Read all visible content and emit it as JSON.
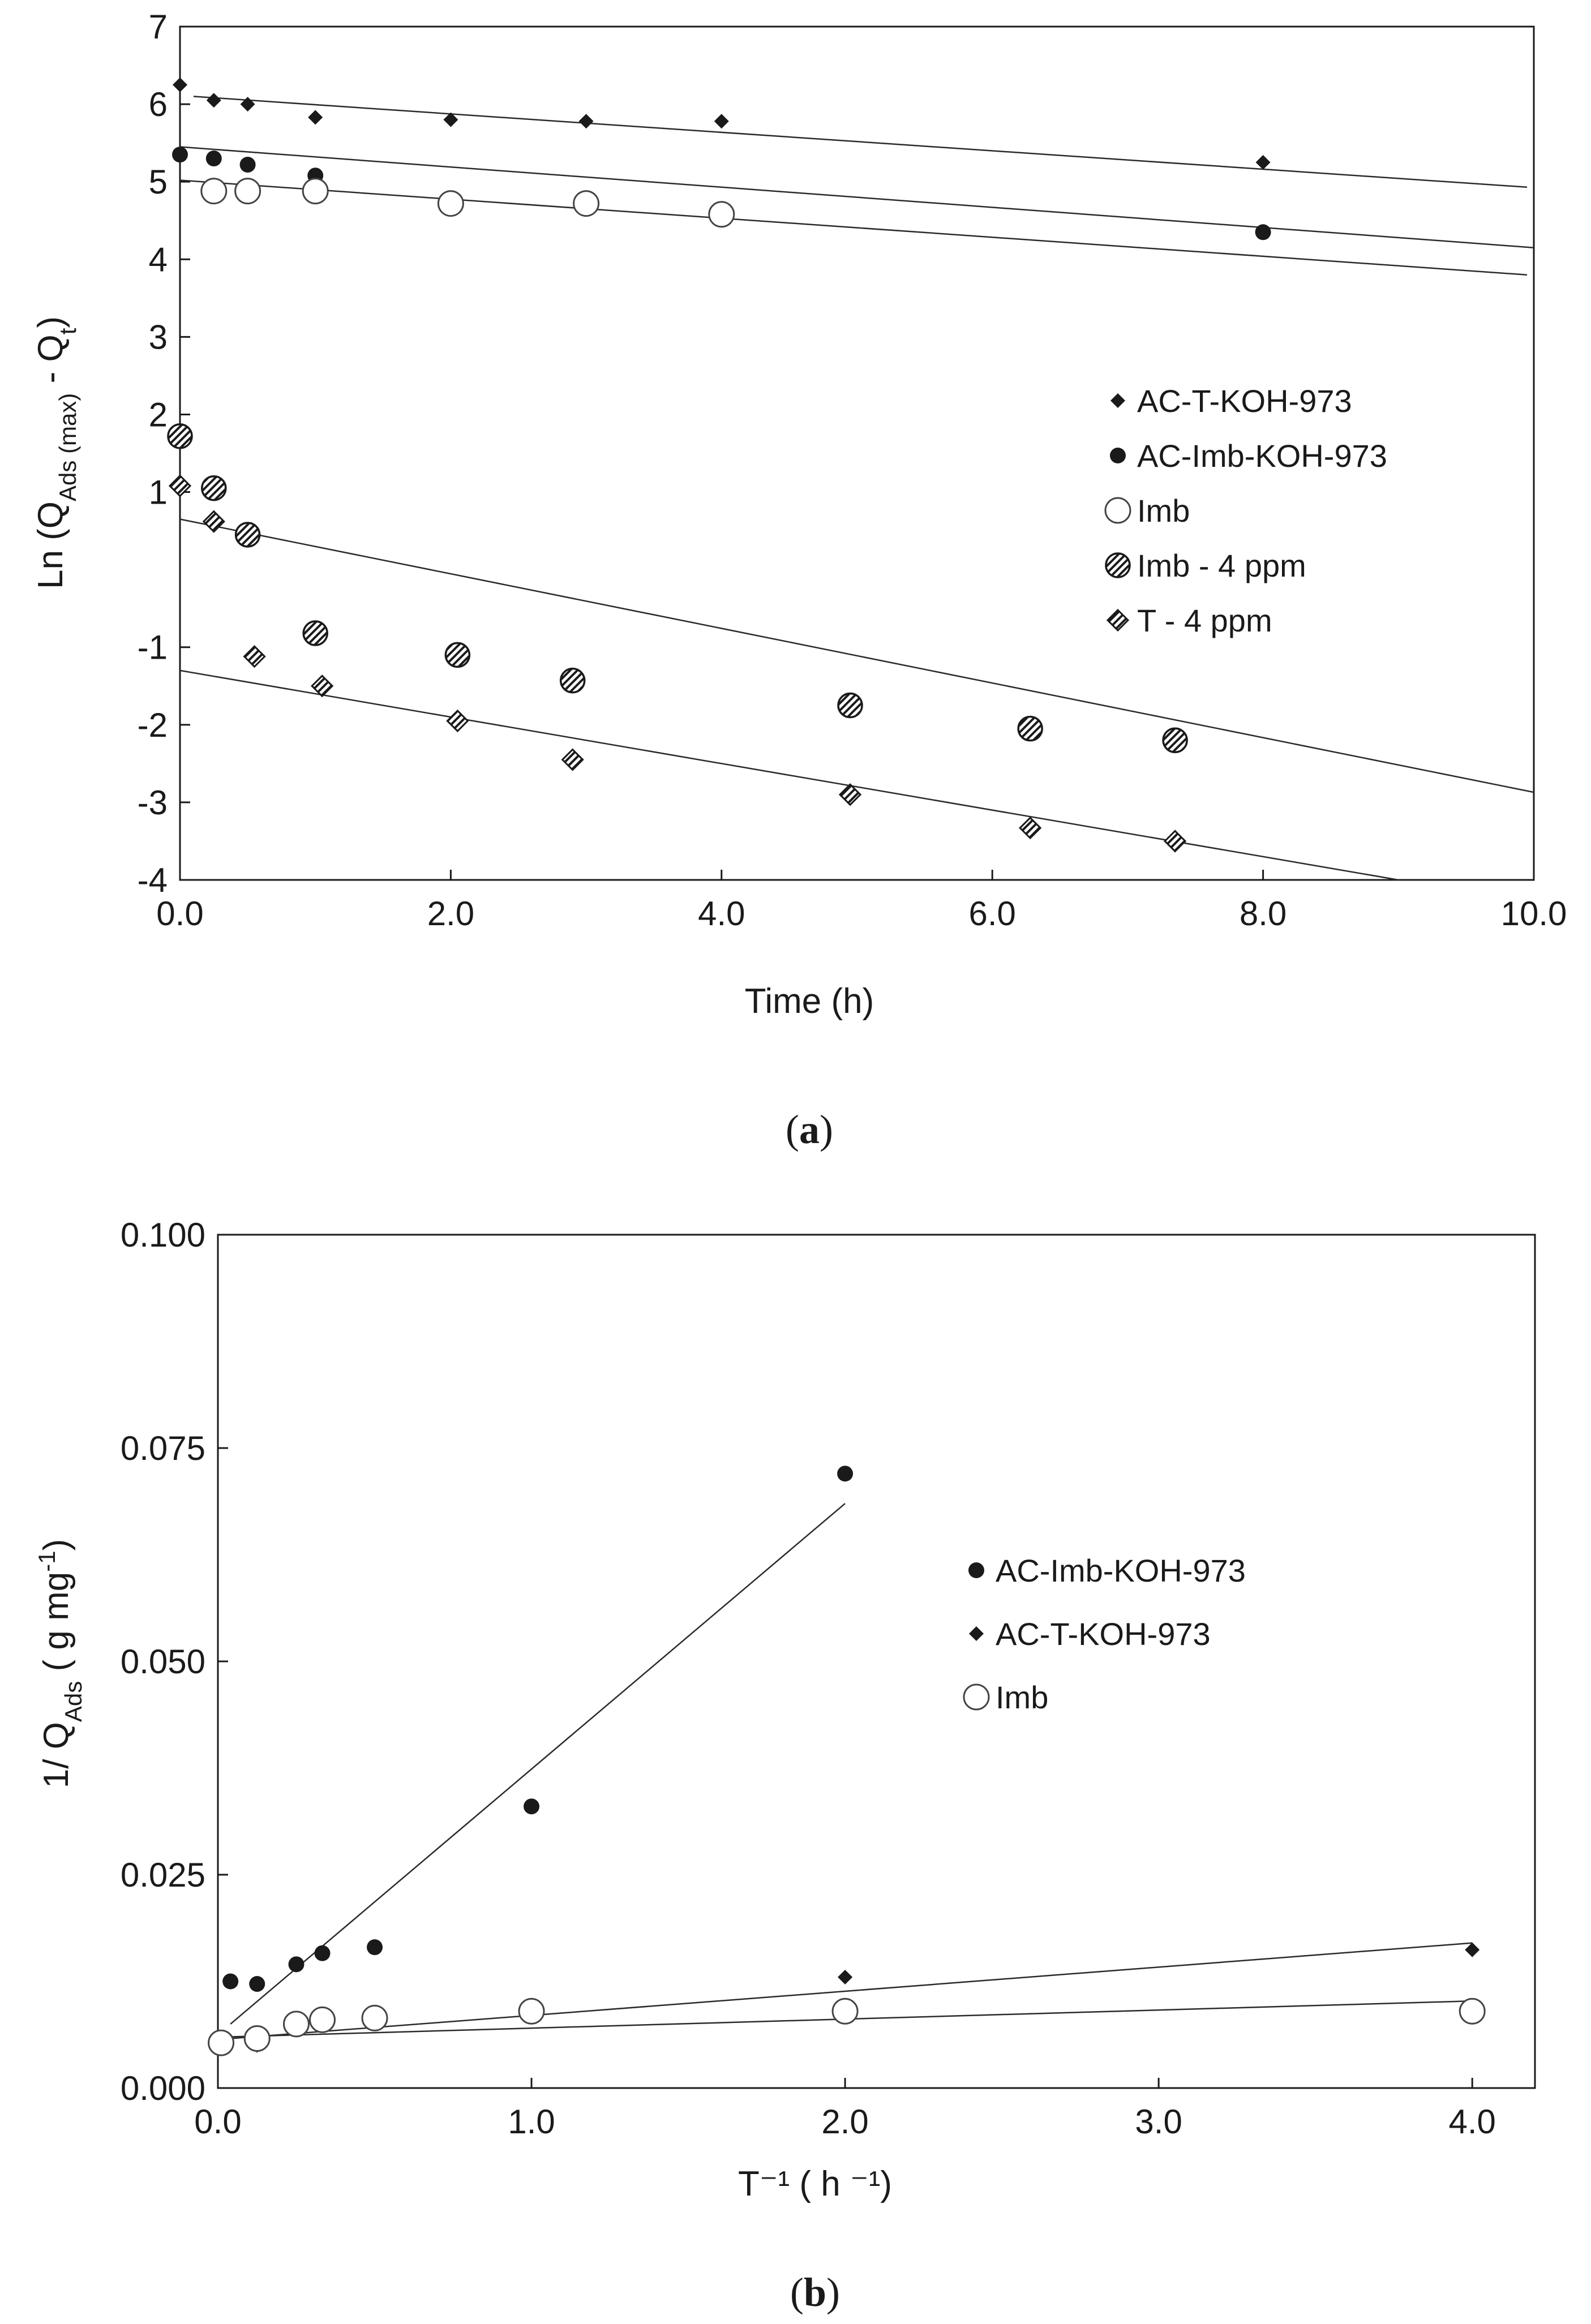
{
  "chart_data": [
    {
      "type": "scatter",
      "panel_label": "a",
      "xlabel": "Time (h)",
      "ylabel": {
        "prefix": "Ln (Q",
        "sub1": "Ads (max)",
        "middle": " - Q",
        "sub2": "t",
        "suffix": ")"
      },
      "xlim": [
        0,
        10
      ],
      "ylim": [
        -4,
        7
      ],
      "x_ticks": [
        0,
        2,
        4,
        6,
        8,
        10
      ],
      "x_tick_labels": [
        "0.0",
        "2.0",
        "4.0",
        "6.0",
        "8.0",
        "10.0"
      ],
      "y_ticks": [
        -4,
        -3,
        -2,
        -1,
        1,
        2,
        3,
        4,
        5,
        6,
        7
      ],
      "y_tick_labels": [
        "-4",
        "-3",
        "-2",
        "-1",
        "1",
        "2",
        "3",
        "4",
        "5",
        "6",
        "7"
      ],
      "grid": false,
      "legend_position": "right-middle",
      "series": [
        {
          "name": "AC-T-KOH-973",
          "marker": "diamond-filled",
          "points": [
            [
              0,
              6.25
            ],
            [
              0.25,
              6.05
            ],
            [
              0.5,
              6.0
            ],
            [
              1.0,
              5.83
            ],
            [
              2.0,
              5.8
            ],
            [
              3.0,
              5.78
            ],
            [
              4.0,
              5.78
            ],
            [
              8.0,
              5.25
            ]
          ],
          "fit_line": [
            [
              0.1,
              6.1
            ],
            [
              9.95,
              4.93
            ]
          ]
        },
        {
          "name": "AC-Imb-KOH-973",
          "marker": "circle-filled",
          "points": [
            [
              0,
              5.35
            ],
            [
              0.25,
              5.3
            ],
            [
              0.5,
              5.22
            ],
            [
              1.0,
              5.08
            ],
            [
              2.0,
              4.72
            ],
            [
              3.0,
              4.65
            ],
            [
              4.0,
              4.6
            ],
            [
              8.0,
              4.35
            ]
          ],
          "fit_line": [
            [
              0,
              5.45
            ],
            [
              10,
              4.15
            ]
          ]
        },
        {
          "name": "Imb",
          "marker": "circle-open",
          "points": [
            [
              0.25,
              4.88
            ],
            [
              0.5,
              4.88
            ],
            [
              1.0,
              4.88
            ],
            [
              2.0,
              4.72
            ],
            [
              3.0,
              4.72
            ],
            [
              4.0,
              4.58
            ]
          ],
          "fit_line": [
            [
              0,
              5.02
            ],
            [
              9.95,
              3.8
            ]
          ]
        },
        {
          "name": "Imb - 4 ppm",
          "marker": "circle-hatched",
          "points": [
            [
              0,
              1.72
            ],
            [
              0.25,
              1.05
            ],
            [
              0.5,
              0.45
            ],
            [
              1.0,
              -0.82
            ],
            [
              2.05,
              -1.1
            ],
            [
              2.9,
              -1.43
            ],
            [
              4.95,
              -1.75
            ],
            [
              6.28,
              -2.05
            ],
            [
              7.35,
              -2.2
            ]
          ],
          "fit_line": [
            [
              0,
              0.65
            ],
            [
              10,
              -2.87
            ]
          ]
        },
        {
          "name": "T - 4 ppm",
          "marker": "diamond-hatched",
          "points": [
            [
              0,
              1.08
            ],
            [
              0.25,
              0.62
            ],
            [
              0.55,
              -1.12
            ],
            [
              1.05,
              -1.5
            ],
            [
              2.05,
              -1.95
            ],
            [
              2.9,
              -2.45
            ],
            [
              4.95,
              -2.9
            ],
            [
              6.28,
              -3.33
            ],
            [
              7.35,
              -3.5
            ]
          ],
          "fit_line": [
            [
              0,
              -1.3
            ],
            [
              9.0,
              -4.0
            ]
          ]
        }
      ]
    },
    {
      "type": "scatter",
      "panel_label": "b",
      "xlabel": "T⁻¹ ( h ⁻¹)",
      "ylabel": {
        "prefix": "1/ Q",
        "sub1": "Ads",
        "middle": "  ( g mg",
        "sup1": "-1",
        "suffix": ")"
      },
      "xlim": [
        0,
        4.2
      ],
      "ylim": [
        0,
        0.1
      ],
      "x_ticks": [
        0,
        1,
        2,
        3,
        4
      ],
      "x_tick_labels": [
        "0.0",
        "1.0",
        "2.0",
        "3.0",
        "4.0"
      ],
      "y_ticks": [
        0,
        0.025,
        0.05,
        0.075,
        0.1
      ],
      "y_tick_labels": [
        "0.000",
        "0.025",
        "0.050",
        "0.075",
        "0.100"
      ],
      "grid": false,
      "legend_position": "right-upper",
      "series": [
        {
          "name": "AC-Imb-KOH-973",
          "marker": "circle-filled",
          "points": [
            [
              0.04,
              0.0125
            ],
            [
              0.125,
              0.0122
            ],
            [
              0.25,
              0.0145
            ],
            [
              0.333,
              0.0158
            ],
            [
              0.5,
              0.0165
            ],
            [
              1.0,
              0.033
            ],
            [
              2.0,
              0.072
            ]
          ],
          "fit_line": [
            [
              0.04,
              0.0075
            ],
            [
              2.0,
              0.0685
            ]
          ]
        },
        {
          "name": "AC-T-KOH-973",
          "marker": "diamond-filled",
          "points": [
            [
              0.125,
              0.005
            ],
            [
              0.25,
              0.0078
            ],
            [
              0.333,
              0.008
            ],
            [
              0.5,
              0.0082
            ],
            [
              1.0,
              0.009
            ],
            [
              2.0,
              0.013
            ],
            [
              4.0,
              0.0162
            ]
          ],
          "fit_line": [
            [
              0.04,
              0.0058
            ],
            [
              4.0,
              0.017
            ]
          ]
        },
        {
          "name": "Imb",
          "marker": "circle-open",
          "points": [
            [
              0.01,
              0.0053
            ],
            [
              0.125,
              0.0058
            ],
            [
              0.25,
              0.0075
            ],
            [
              0.333,
              0.008
            ],
            [
              0.5,
              0.0082
            ],
            [
              1.0,
              0.009
            ],
            [
              2.0,
              0.009
            ],
            [
              4.0,
              0.009
            ]
          ],
          "fit_line": [
            [
              0.04,
              0.006
            ],
            [
              4.0,
              0.0102
            ]
          ]
        }
      ]
    }
  ]
}
